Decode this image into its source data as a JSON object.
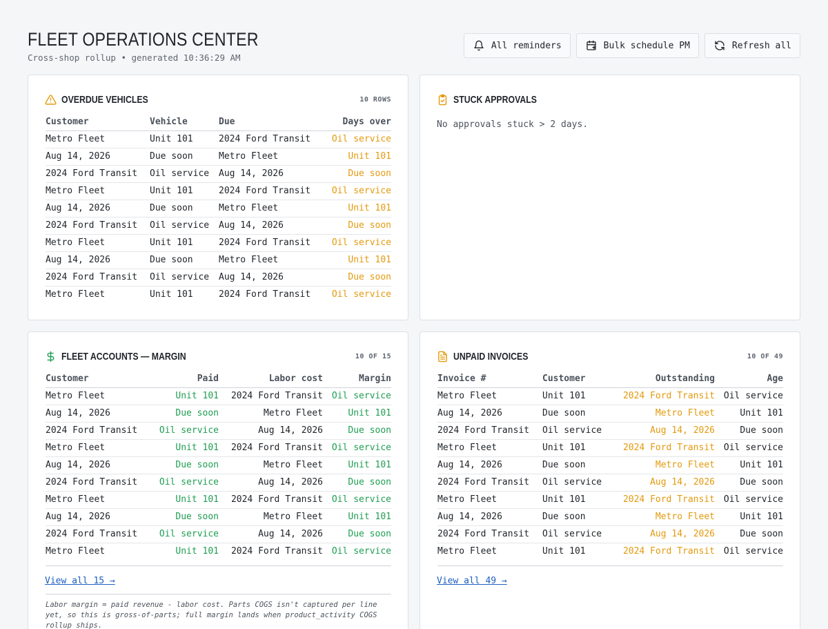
{
  "header": {
    "title": "FLEET OPERATIONS CENTER",
    "subtitle": "Cross-shop rollup • generated 10:36:29 AM",
    "buttons": {
      "reminders": {
        "label": "All reminders",
        "icon": "bell-icon"
      },
      "bulk_pm": {
        "label": "Bulk schedule PM",
        "icon": "calendar-plus-icon"
      },
      "refresh": {
        "label": "Refresh all",
        "icon": "refresh-icon"
      }
    }
  },
  "colors": {
    "amber": "#e39a0d",
    "green": "#1e9e52",
    "link": "#1f5fbf"
  },
  "overdue": {
    "title": "OVERDUE VEHICLES",
    "count": "10 ROWS",
    "columns": [
      "Customer",
      "Vehicle",
      "Due",
      "Days over"
    ],
    "rows": [
      [
        "Metro Fleet",
        "Unit 101",
        "2024 Ford Transit",
        "Oil service"
      ],
      [
        "Aug 14, 2026",
        "Due soon",
        "Metro Fleet",
        "Unit 101"
      ],
      [
        "2024 Ford Transit",
        "Oil service",
        "Aug 14, 2026",
        "Due soon"
      ],
      [
        "Metro Fleet",
        "Unit 101",
        "2024 Ford Transit",
        "Oil service"
      ],
      [
        "Aug 14, 2026",
        "Due soon",
        "Metro Fleet",
        "Unit 101"
      ],
      [
        "2024 Ford Transit",
        "Oil service",
        "Aug 14, 2026",
        "Due soon"
      ],
      [
        "Metro Fleet",
        "Unit 101",
        "2024 Ford Transit",
        "Oil service"
      ],
      [
        "Aug 14, 2026",
        "Due soon",
        "Metro Fleet",
        "Unit 101"
      ],
      [
        "2024 Ford Transit",
        "Oil service",
        "Aug 14, 2026",
        "Due soon"
      ],
      [
        "Metro Fleet",
        "Unit 101",
        "2024 Ford Transit",
        "Oil service"
      ]
    ]
  },
  "stuck": {
    "title": "STUCK APPROVALS",
    "empty_text": "No approvals stuck > 2 days."
  },
  "margin": {
    "title": "FLEET ACCOUNTS — MARGIN",
    "count": "10 OF 15",
    "columns": [
      "Customer",
      "Paid",
      "Labor cost",
      "Margin"
    ],
    "rows": [
      [
        "Metro Fleet",
        "Unit 101",
        "2024 Ford Transit",
        "Oil service"
      ],
      [
        "Aug 14, 2026",
        "Due soon",
        "Metro Fleet",
        "Unit 101"
      ],
      [
        "2024 Ford Transit",
        "Oil service",
        "Aug 14, 2026",
        "Due soon"
      ],
      [
        "Metro Fleet",
        "Unit 101",
        "2024 Ford Transit",
        "Oil service"
      ],
      [
        "Aug 14, 2026",
        "Due soon",
        "Metro Fleet",
        "Unit 101"
      ],
      [
        "2024 Ford Transit",
        "Oil service",
        "Aug 14, 2026",
        "Due soon"
      ],
      [
        "Metro Fleet",
        "Unit 101",
        "2024 Ford Transit",
        "Oil service"
      ],
      [
        "Aug 14, 2026",
        "Due soon",
        "Metro Fleet",
        "Unit 101"
      ],
      [
        "2024 Ford Transit",
        "Oil service",
        "Aug 14, 2026",
        "Due soon"
      ],
      [
        "Metro Fleet",
        "Unit 101",
        "2024 Ford Transit",
        "Oil service"
      ]
    ],
    "view_all": "View all 15 →",
    "note": "Labor margin = paid revenue - labor cost. Parts COGS isn't captured per line yet, so this is gross-of-parts; full margin lands when product_activity COGS rollup ships."
  },
  "unpaid": {
    "title": "UNPAID INVOICES",
    "count": "10 OF 49",
    "columns": [
      "Invoice #",
      "Customer",
      "Outstanding",
      "Age"
    ],
    "rows": [
      [
        "Metro Fleet",
        "Unit 101",
        "2024 Ford Transit",
        "Oil service"
      ],
      [
        "Aug 14, 2026",
        "Due soon",
        "Metro Fleet",
        "Unit 101"
      ],
      [
        "2024 Ford Transit",
        "Oil service",
        "Aug 14, 2026",
        "Due soon"
      ],
      [
        "Metro Fleet",
        "Unit 101",
        "2024 Ford Transit",
        "Oil service"
      ],
      [
        "Aug 14, 2026",
        "Due soon",
        "Metro Fleet",
        "Unit 101"
      ],
      [
        "2024 Ford Transit",
        "Oil service",
        "Aug 14, 2026",
        "Due soon"
      ],
      [
        "Metro Fleet",
        "Unit 101",
        "2024 Ford Transit",
        "Oil service"
      ],
      [
        "Aug 14, 2026",
        "Due soon",
        "Metro Fleet",
        "Unit 101"
      ],
      [
        "2024 Ford Transit",
        "Oil service",
        "Aug 14, 2026",
        "Due soon"
      ],
      [
        "Metro Fleet",
        "Unit 101",
        "2024 Ford Transit",
        "Oil service"
      ]
    ],
    "view_all": "View all 49 →"
  }
}
